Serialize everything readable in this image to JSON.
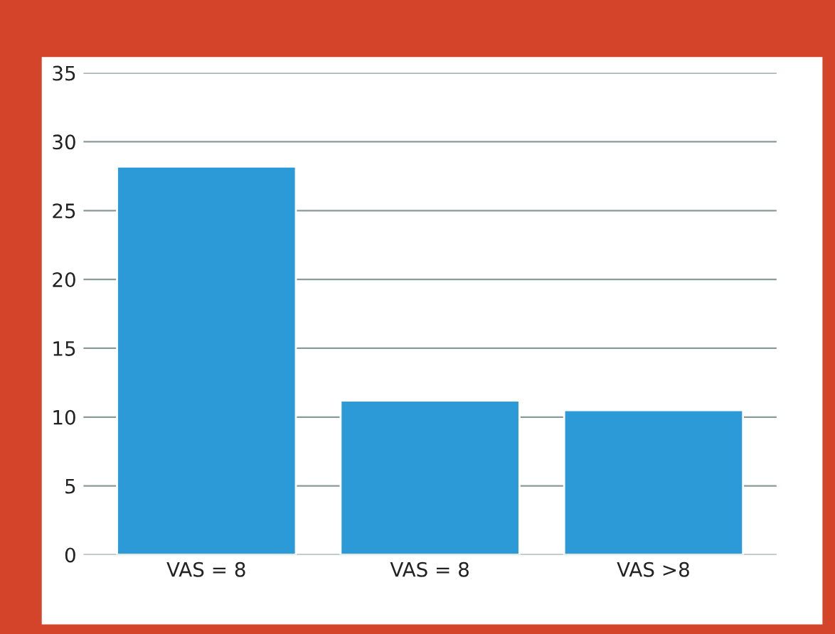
{
  "chart_data": {
    "type": "bar",
    "categories": [
      "VAS = 8",
      "VAS = 8",
      "VAS >8"
    ],
    "values": [
      28.2,
      11.2,
      10.5
    ],
    "color": "#2d9ad8",
    "ylim": [
      0,
      35
    ],
    "yticks": [
      0,
      5,
      10,
      15,
      20,
      25,
      30,
      35
    ],
    "grid": "y"
  }
}
